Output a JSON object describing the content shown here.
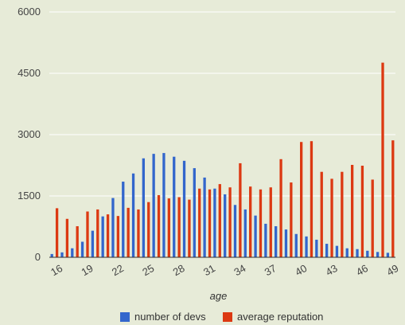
{
  "chart_data": {
    "type": "bar",
    "xlabel": "age",
    "ylabel": "",
    "ylim": [
      0,
      6000
    ],
    "yticks": [
      0,
      1500,
      3000,
      4500,
      6000
    ],
    "grid": true,
    "legend_position": "bottom",
    "categories": [
      "16",
      "17",
      "18",
      "19",
      "20",
      "21",
      "22",
      "23",
      "24",
      "25",
      "26",
      "27",
      "28",
      "29",
      "30",
      "31",
      "32",
      "33",
      "34",
      "35",
      "36",
      "37",
      "38",
      "39",
      "40",
      "41",
      "42",
      "43",
      "44",
      "45",
      "46",
      "47",
      "48",
      "49"
    ],
    "x_tick_labels": [
      "16",
      "19",
      "22",
      "25",
      "28",
      "31",
      "34",
      "37",
      "40",
      "43",
      "46",
      "49"
    ],
    "series": [
      {
        "name": "number of devs",
        "color": "#3366cc",
        "values": [
          80,
          120,
          220,
          380,
          650,
          1000,
          1450,
          1850,
          2050,
          2420,
          2530,
          2550,
          2460,
          2360,
          2180,
          1950,
          1680,
          1540,
          1280,
          1170,
          1020,
          820,
          760,
          680,
          570,
          510,
          430,
          330,
          280,
          220,
          200,
          160,
          130,
          110
        ]
      },
      {
        "name": "average reputation",
        "color": "#dc3912",
        "values": [
          1200,
          940,
          760,
          1120,
          1170,
          1050,
          1010,
          1210,
          1170,
          1350,
          1520,
          1440,
          1470,
          1410,
          1680,
          1660,
          1790,
          1710,
          2300,
          1730,
          1660,
          1710,
          2400,
          1830,
          2820,
          2840,
          2090,
          1920,
          2090,
          2260,
          2240,
          1900,
          4760,
          2860
        ]
      }
    ]
  }
}
